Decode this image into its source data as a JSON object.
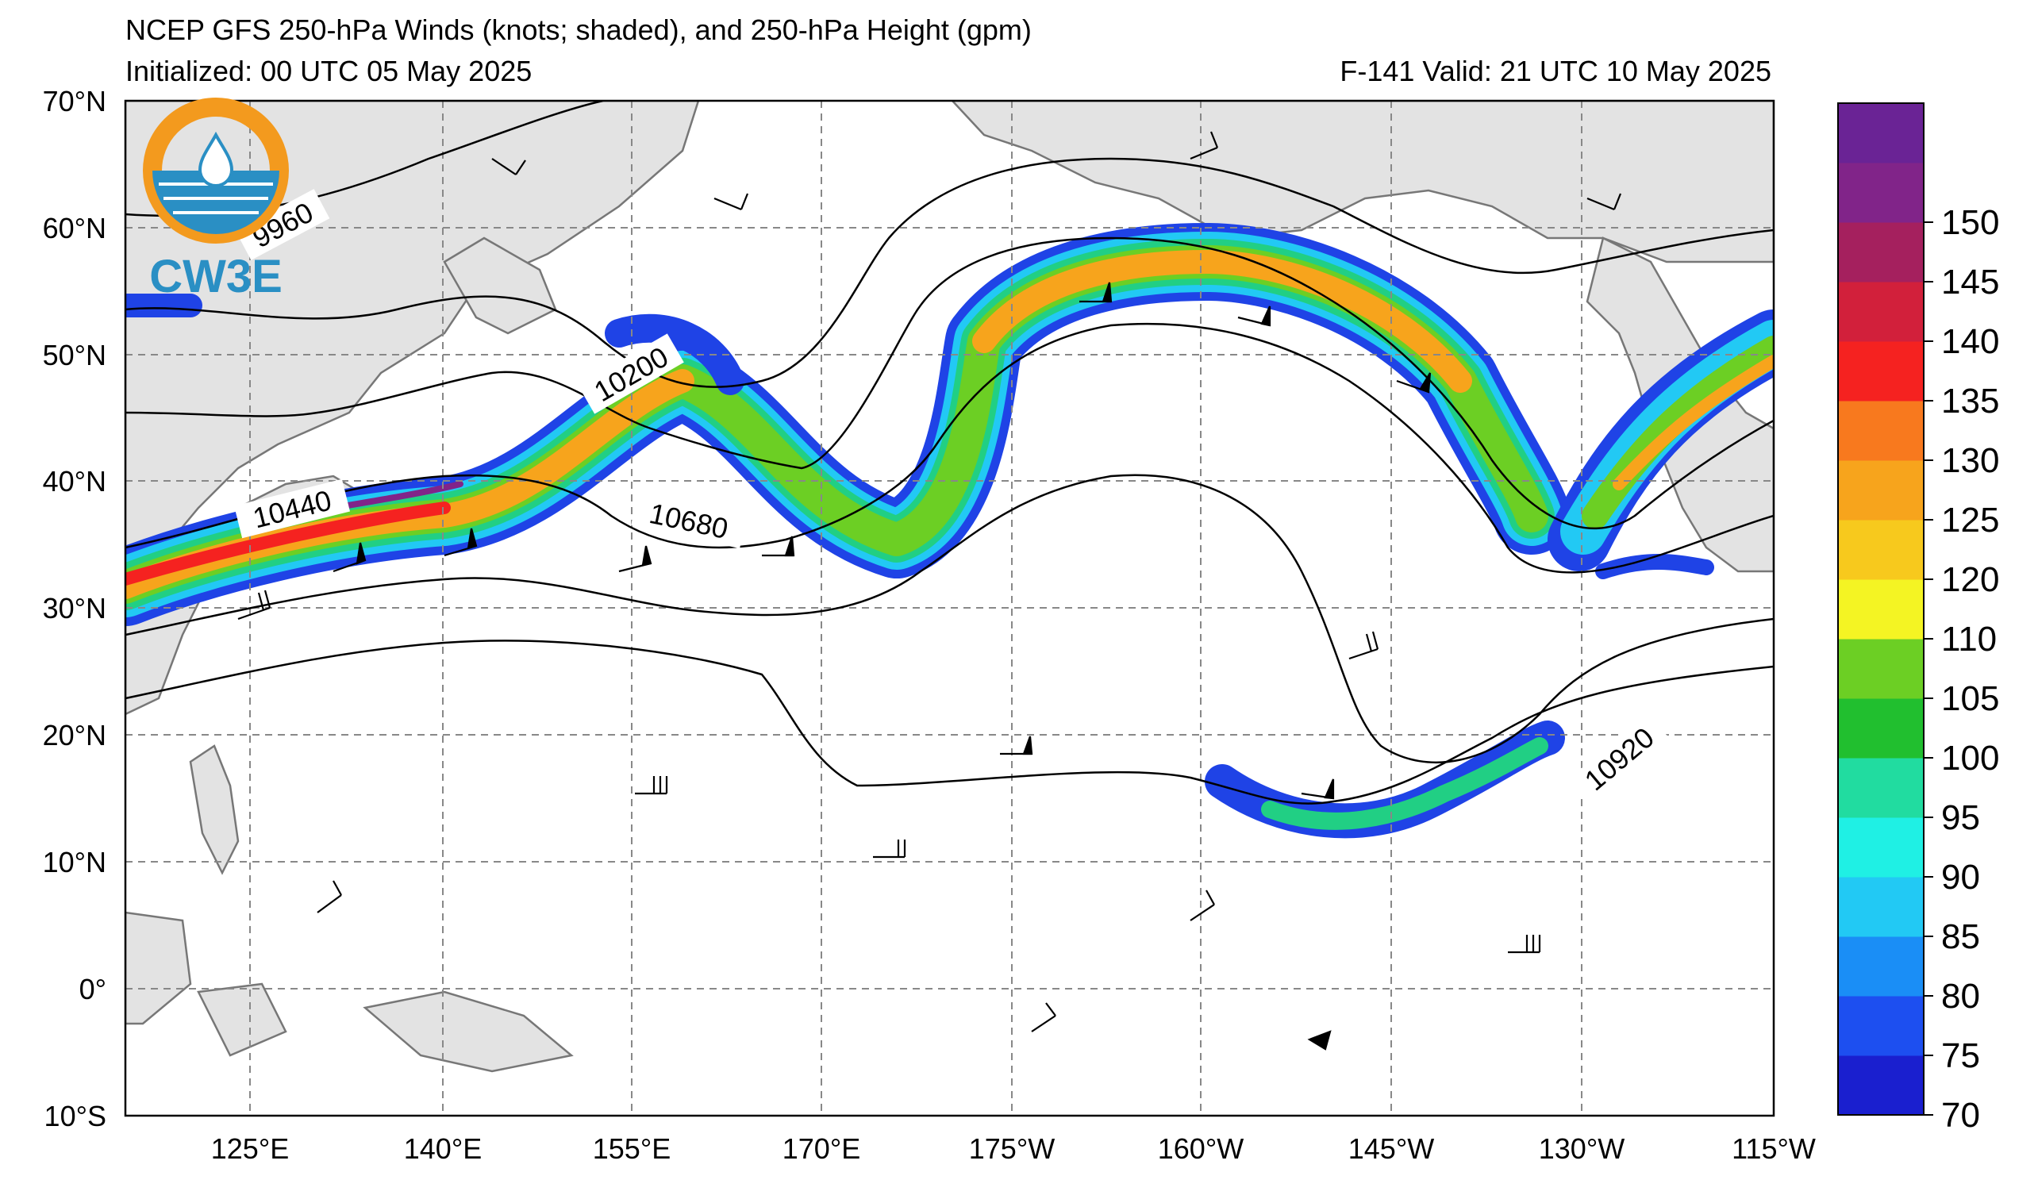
{
  "header": {
    "title": "NCEP GFS 250-hPa Winds (knots; shaded), and 250-hPa Height (gpm)",
    "initialized": "Initialized: 00 UTC 05 May 2025",
    "valid": "F-141  Valid: 21 UTC 10 May 2025"
  },
  "logo": {
    "text": "CW3E",
    "colors": {
      "ring": "#f39a1e",
      "water": "#2a8fc4"
    }
  },
  "map": {
    "lat_labels": [
      "70°N",
      "60°N",
      "50°N",
      "40°N",
      "30°N",
      "20°N",
      "10°N",
      "0°",
      "10°S"
    ],
    "lon_labels": [
      "125°E",
      "140°E",
      "155°E",
      "170°E",
      "175°W",
      "160°W",
      "145°W",
      "130°W",
      "115°W"
    ],
    "land_color": "#e3e3e3",
    "ocean_color": "#ffffff",
    "grid": "dashed",
    "contour_labels": [
      "9960",
      "10200",
      "10440",
      "10680",
      "10920"
    ]
  },
  "colorbar": {
    "ticks": [
      "70",
      "75",
      "80",
      "85",
      "90",
      "95",
      "100",
      "105",
      "110",
      "120",
      "125",
      "130",
      "135",
      "140",
      "145",
      "150"
    ],
    "colors": [
      "#1a1fcf",
      "#1d4ff0",
      "#1a8ef6",
      "#22c9f4",
      "#1ff0e4",
      "#21dca0",
      "#21bf2f",
      "#6ccf24",
      "#f4f423",
      "#f7c91d",
      "#f7a41c",
      "#f8791e",
      "#f52220",
      "#d2203b",
      "#a5205e",
      "#812489",
      "#6a2395"
    ]
  }
}
